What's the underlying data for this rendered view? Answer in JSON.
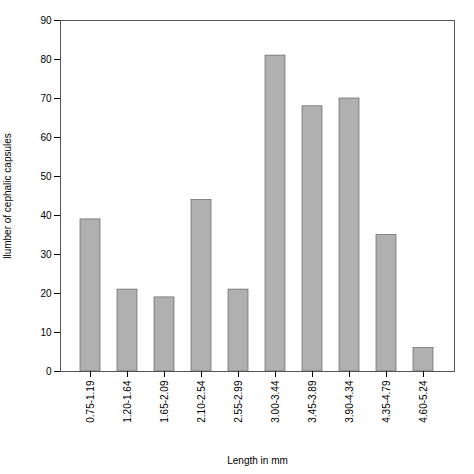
{
  "chart_data": {
    "type": "bar",
    "categories": [
      "0.75-1.19",
      "1.20-1.64",
      "1.65-2.09",
      "2.10-2.54",
      "2.55-2.99",
      "3.00-3.44",
      "3.45-3.89",
      "3.90-4.34",
      "4.35-4.79",
      "4.60-5.24"
    ],
    "values": [
      39,
      21,
      19,
      44,
      21,
      81,
      68,
      70,
      35,
      6
    ],
    "color": "#b0b0b0",
    "xlabel": "Length in mm",
    "ylabel": "llumber of cephalic capsules",
    "ylim": [
      0,
      90
    ],
    "yticks": [
      0,
      10,
      20,
      30,
      40,
      50,
      60,
      70,
      80,
      90
    ],
    "grid": false
  }
}
